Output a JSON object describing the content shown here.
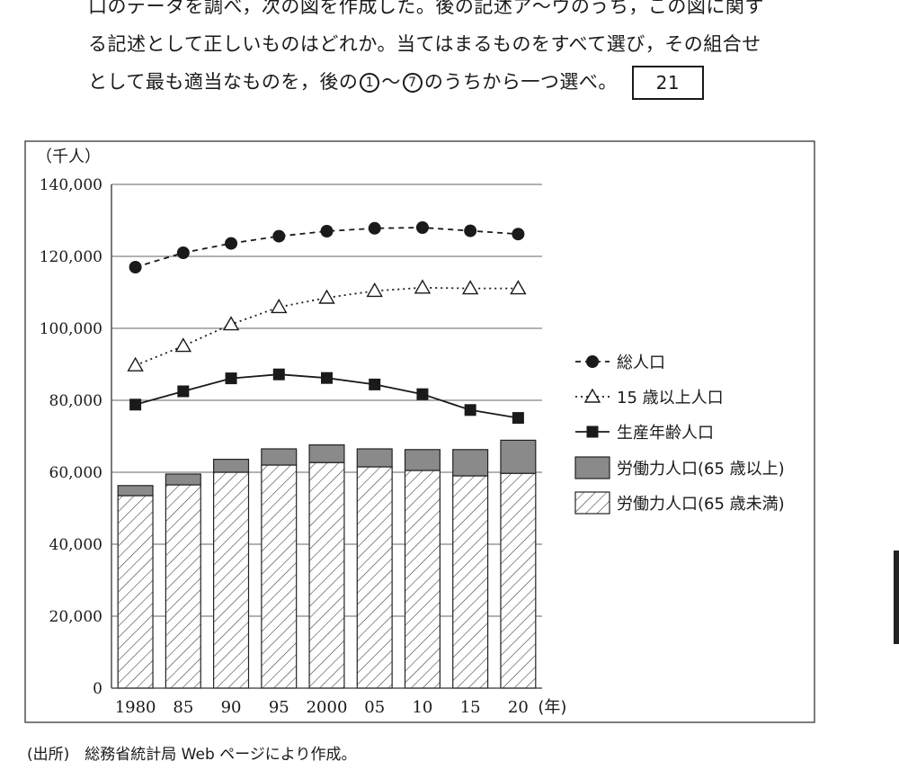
{
  "question": {
    "line1": "口のデータを調べ，次の図を作成した。後の記述ア～ウのうち，この図に関す",
    "line2": "る記述として正しいものはどれか。当てはまるものをすべて選び，その組合せ",
    "line3_before": "として最も適当なものを，後の",
    "choice_first": "1",
    "tilde": "～",
    "choice_last": "7",
    "line3_after": "のうちから一つ選べ。",
    "answer_box": "21"
  },
  "source_note": "(出所)　総務省統計局 Web ページにより作成。",
  "chart_data": {
    "type": "bar",
    "ylabel": "（千人）",
    "xlabel_unit": "(年)",
    "ylim": [
      0,
      140000
    ],
    "yticks": [
      0,
      20000,
      40000,
      60000,
      80000,
      100000,
      120000,
      140000
    ],
    "ytick_labels": [
      "0",
      "20,000",
      "40,000",
      "60,000",
      "80,000",
      "100,000",
      "120,000",
      "140,000"
    ],
    "categories": [
      "1980",
      "85",
      "90",
      "95",
      "2000",
      "05",
      "10",
      "15",
      "20"
    ],
    "grid": true,
    "legend_position": "right",
    "stacked_bars": [
      {
        "name": "労働力人口(65歳未満)",
        "pattern": "hatched",
        "values": [
          53500,
          56500,
          60000,
          62000,
          62700,
          61500,
          60500,
          59000,
          59700
        ]
      },
      {
        "name": "労働力人口(65歳以上)",
        "pattern": "gray",
        "values": [
          2800,
          3000,
          3600,
          4500,
          4900,
          5000,
          5800,
          7300,
          9200
        ]
      }
    ],
    "lines": [
      {
        "name": "総人口",
        "style": "dashed",
        "marker": "circle",
        "values": [
          117000,
          121000,
          123600,
          125600,
          127000,
          127800,
          128000,
          127100,
          126200
        ]
      },
      {
        "name": "15歳以上人口",
        "style": "dotted",
        "marker": "triangle-open",
        "values": [
          89700,
          95100,
          101100,
          105900,
          108500,
          110400,
          111300,
          111100,
          111100
        ]
      },
      {
        "name": "生産年齢人口",
        "style": "solid",
        "marker": "square",
        "values": [
          78800,
          82500,
          86100,
          87200,
          86200,
          84400,
          81700,
          77300,
          75100
        ]
      }
    ],
    "legend": [
      "総人口",
      "15 歳以上人口",
      "生産年齢人口",
      "労働力人口(65 歳以上)",
      "労働力人口(65 歳未満)"
    ]
  }
}
